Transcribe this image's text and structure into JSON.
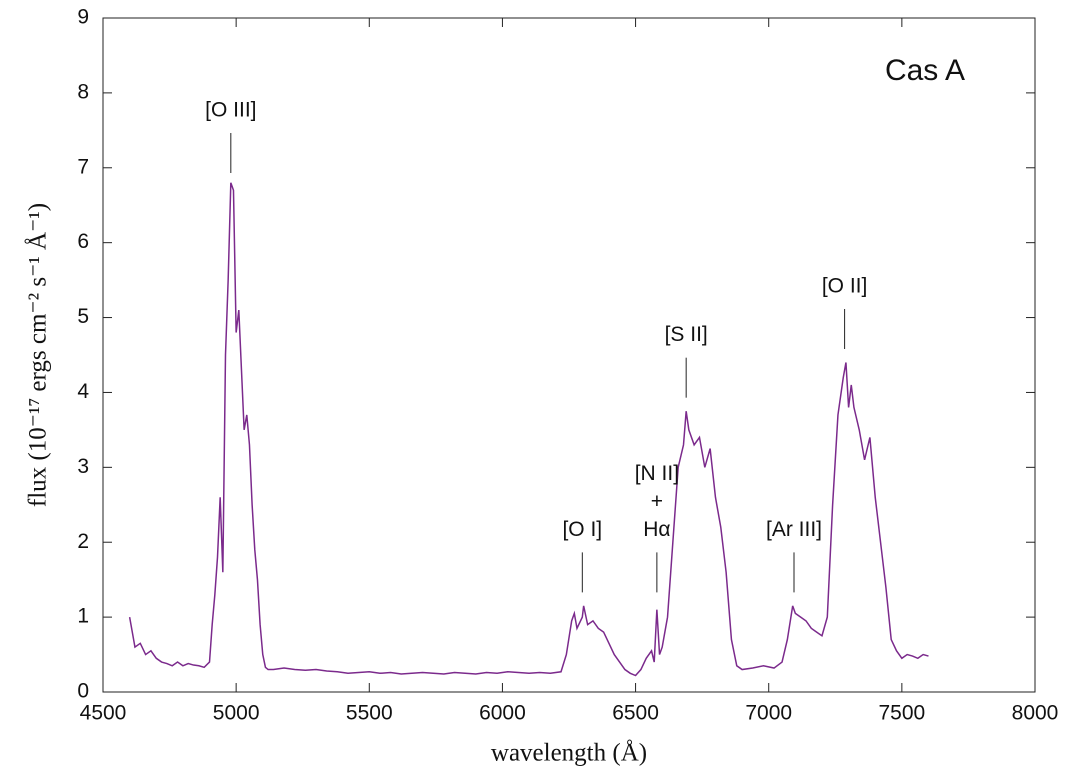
{
  "chart_data": {
    "type": "line",
    "title": "Cas A",
    "x_label": "wavelength (Å)",
    "y_label": "flux (10⁻¹⁷ ergs cm⁻² s⁻¹ Å⁻¹)",
    "xlim": [
      4500,
      8000
    ],
    "xticks": [
      4500,
      5000,
      5500,
      6000,
      6500,
      7000,
      7500,
      8000
    ],
    "ylim": [
      0,
      9
    ],
    "yticks": [
      0,
      1,
      2,
      3,
      4,
      5,
      6,
      7,
      8,
      9
    ],
    "series": [
      {
        "color": "#7b2a8c",
        "x": [
          4600,
          4620,
          4640,
          4660,
          4680,
          4700,
          4720,
          4740,
          4760,
          4780,
          4800,
          4820,
          4840,
          4860,
          4880,
          4900,
          4910,
          4920,
          4930,
          4940,
          4950,
          4960,
          4970,
          4980,
          4990,
          5000,
          5010,
          5020,
          5030,
          5040,
          5050,
          5060,
          5070,
          5080,
          5090,
          5100,
          5110,
          5120,
          5140,
          5180,
          5220,
          5260,
          5300,
          5340,
          5380,
          5420,
          5460,
          5500,
          5540,
          5580,
          5620,
          5660,
          5700,
          5740,
          5780,
          5820,
          5860,
          5900,
          5940,
          5980,
          6020,
          6060,
          6100,
          6140,
          6180,
          6220,
          6240,
          6260,
          6270,
          6280,
          6300,
          6305,
          6320,
          6340,
          6360,
          6380,
          6400,
          6420,
          6440,
          6460,
          6480,
          6500,
          6520,
          6540,
          6560,
          6570,
          6580,
          6590,
          6600,
          6620,
          6640,
          6660,
          6680,
          6690,
          6700,
          6720,
          6740,
          6760,
          6780,
          6800,
          6820,
          6840,
          6860,
          6880,
          6900,
          6940,
          6980,
          7020,
          7050,
          7070,
          7090,
          7100,
          7120,
          7140,
          7160,
          7180,
          7200,
          7220,
          7240,
          7260,
          7280,
          7290,
          7300,
          7310,
          7320,
          7340,
          7360,
          7380,
          7400,
          7420,
          7440,
          7460,
          7480,
          7500,
          7520,
          7540,
          7560,
          7580,
          7600
        ],
        "values": [
          1,
          0.6,
          0.65,
          0.5,
          0.55,
          0.45,
          0.4,
          0.38,
          0.35,
          0.4,
          0.35,
          0.38,
          0.36,
          0.35,
          0.33,
          0.4,
          0.9,
          1.3,
          1.8,
          2.6,
          1.6,
          4.5,
          5.5,
          6.8,
          6.7,
          4.8,
          5.1,
          4.3,
          3.5,
          3.7,
          3.3,
          2.5,
          1.9,
          1.5,
          0.9,
          0.5,
          0.33,
          0.3,
          0.3,
          0.32,
          0.3,
          0.29,
          0.3,
          0.28,
          0.27,
          0.25,
          0.26,
          0.27,
          0.25,
          0.26,
          0.24,
          0.25,
          0.26,
          0.25,
          0.24,
          0.26,
          0.25,
          0.24,
          0.26,
          0.25,
          0.27,
          0.26,
          0.25,
          0.26,
          0.25,
          0.27,
          0.5,
          0.95,
          1.05,
          0.85,
          1.0,
          1.15,
          0.9,
          0.95,
          0.85,
          0.8,
          0.65,
          0.5,
          0.4,
          0.3,
          0.25,
          0.22,
          0.3,
          0.45,
          0.55,
          0.4,
          1.1,
          0.5,
          0.6,
          1.0,
          2.0,
          3.0,
          3.3,
          3.75,
          3.5,
          3.3,
          3.4,
          3.0,
          3.25,
          2.6,
          2.2,
          1.6,
          0.7,
          0.35,
          0.3,
          0.32,
          0.35,
          0.32,
          0.4,
          0.7,
          1.15,
          1.05,
          1.0,
          0.95,
          0.85,
          0.8,
          0.75,
          1.0,
          2.5,
          3.7,
          4.2,
          4.4,
          3.8,
          4.1,
          3.8,
          3.5,
          3.1,
          3.4,
          2.6,
          2.0,
          1.4,
          0.7,
          0.55,
          0.45,
          0.5,
          0.48,
          0.45,
          0.5,
          0.48
        ]
      }
    ],
    "annotations": [
      {
        "lines": [
          "[O III]"
        ],
        "x": 4980,
        "y": 6.85
      },
      {
        "lines": [
          "[O I]"
        ],
        "x": 6300,
        "y": 1.25
      },
      {
        "lines": [
          "[N II]",
          "+",
          "Hα"
        ],
        "x": 6580,
        "y": 1.25
      },
      {
        "lines": [
          "[S II]"
        ],
        "x": 6690,
        "y": 3.85
      },
      {
        "lines": [
          "[Ar III]"
        ],
        "x": 7095,
        "y": 1.25
      },
      {
        "lines": [
          "[O II]"
        ],
        "x": 7285,
        "y": 4.5
      }
    ]
  }
}
